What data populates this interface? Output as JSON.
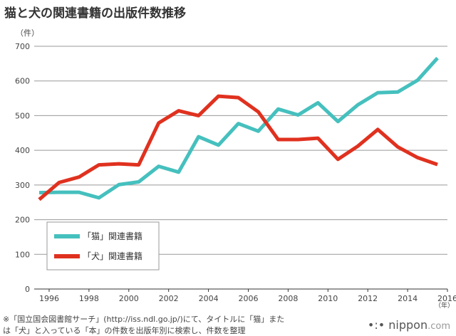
{
  "title": "猫と犬の関連書籍の出版件数推移",
  "chart_data": {
    "type": "line",
    "title": "猫と犬の関連書籍の出版件数推移",
    "ylabel": "（件）",
    "xlabel": "（年）",
    "ylim": [
      0,
      700
    ],
    "xlim": [
      1995.25,
      2016
    ],
    "y_ticks": [
      0,
      100,
      200,
      300,
      400,
      500,
      600,
      700
    ],
    "x_ticks": [
      1996,
      1998,
      2000,
      2002,
      2004,
      2006,
      2008,
      2010,
      2012,
      2014,
      2016
    ],
    "x": [
      1995.5,
      1996.5,
      1997.5,
      1998.5,
      1999.5,
      2000.5,
      2001.5,
      2002.5,
      2003.5,
      2004.5,
      2005.5,
      2006.5,
      2007.5,
      2008.5,
      2009.5,
      2010.5,
      2011.5,
      2012.5,
      2013.5,
      2014.5,
      2015.5
    ],
    "series": [
      {
        "name": "「猫」関連書籍",
        "color": "#45c0be",
        "values": [
          278,
          279,
          279,
          263,
          301,
          309,
          354,
          337,
          439,
          415,
          477,
          455,
          519,
          502,
          537,
          483,
          531,
          566,
          568,
          602,
          666
        ]
      },
      {
        "name": "「犬」関連書籍",
        "color": "#e0311f",
        "values": [
          258,
          307,
          323,
          358,
          361,
          358,
          479,
          514,
          500,
          556,
          552,
          511,
          431,
          431,
          435,
          374,
          412,
          460,
          410,
          379,
          359
        ]
      }
    ],
    "legend": "bottom-left",
    "grid": true
  },
  "notes": [
    "※「国立国会図書館サーチ」(http://iss.ndl.go.jp/)にて、タイトルに「猫」また",
    "は「犬」と入っている「本」の件数を出版年別に検索し、件数を整理"
  ],
  "brand": {
    "dots": "•:•",
    "name": "nippon",
    "suffix": ".com"
  }
}
